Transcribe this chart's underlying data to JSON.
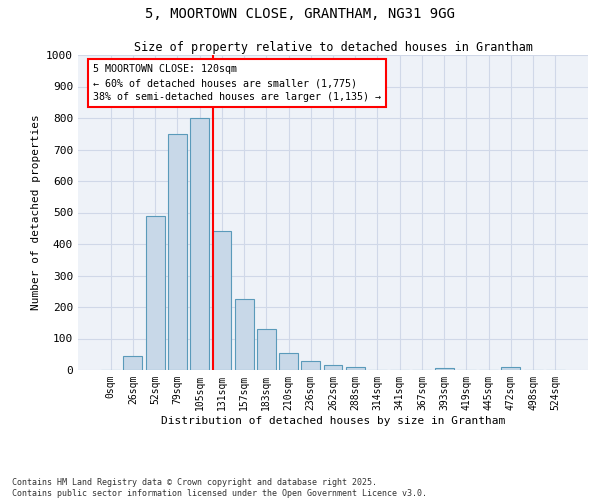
{
  "title_line1": "5, MOORTOWN CLOSE, GRANTHAM, NG31 9GG",
  "title_line2": "Size of property relative to detached houses in Grantham",
  "xlabel": "Distribution of detached houses by size in Grantham",
  "ylabel": "Number of detached properties",
  "bar_color": "#c8d8e8",
  "bar_edge_color": "#5a9aba",
  "grid_color": "#d0d8e8",
  "bg_color": "#eef2f8",
  "categories": [
    "0sqm",
    "26sqm",
    "52sqm",
    "79sqm",
    "105sqm",
    "131sqm",
    "157sqm",
    "183sqm",
    "210sqm",
    "236sqm",
    "262sqm",
    "288sqm",
    "314sqm",
    "341sqm",
    "367sqm",
    "393sqm",
    "419sqm",
    "445sqm",
    "472sqm",
    "498sqm",
    "524sqm"
  ],
  "values": [
    0,
    45,
    490,
    750,
    800,
    440,
    225,
    130,
    55,
    30,
    15,
    10,
    0,
    0,
    0,
    5,
    0,
    0,
    10,
    0,
    0
  ],
  "ylim": [
    0,
    1000
  ],
  "yticks": [
    0,
    100,
    200,
    300,
    400,
    500,
    600,
    700,
    800,
    900,
    1000
  ],
  "property_line_x": 4.62,
  "annotation_text": "5 MOORTOWN CLOSE: 120sqm\n← 60% of detached houses are smaller (1,775)\n38% of semi-detached houses are larger (1,135) →",
  "annotation_box_color": "#ff0000",
  "footer_line1": "Contains HM Land Registry data © Crown copyright and database right 2025.",
  "footer_line2": "Contains public sector information licensed under the Open Government Licence v3.0."
}
